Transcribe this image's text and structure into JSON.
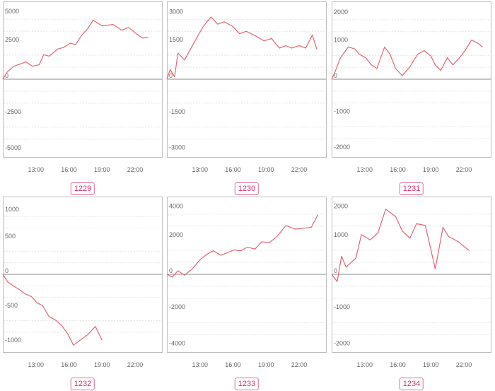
{
  "colors": {
    "line": "#e8646e",
    "frame": "#bdbdbd",
    "grid": "#e4e4e4",
    "zero": "#888888",
    "badge": "#d6336c"
  },
  "chart_data": [
    {
      "type": "line",
      "label": "1229",
      "ylim": [
        -5400,
        5400
      ],
      "yticks": [
        5000,
        2500,
        0,
        -2500,
        -5000
      ],
      "xlim": [
        10,
        24.5
      ],
      "xticks": [
        "13:00",
        "16:00",
        "19:00",
        "22:00"
      ],
      "x": [
        10.0,
        10.4,
        11.0,
        12.1,
        12.7,
        13.3,
        13.7,
        14.2,
        15.0,
        15.5,
        16.1,
        16.6,
        17.2,
        17.7,
        18.2,
        19.0,
        20.0,
        20.8,
        21.4,
        22.2,
        22.7,
        23.2
      ],
      "y": [
        0,
        500,
        900,
        1200,
        900,
        1000,
        1700,
        1600,
        2100,
        2200,
        2500,
        2400,
        3100,
        3500,
        4100,
        3700,
        3800,
        3400,
        3600,
        3100,
        2850,
        2900
      ]
    },
    {
      "type": "line",
      "label": "1230",
      "ylim": [
        -3250,
        3250
      ],
      "yticks": [
        3000,
        1500,
        0,
        -1500,
        -3000
      ],
      "xlim": [
        10,
        24.5
      ],
      "xticks": [
        "13:00",
        "16:00",
        "19:00",
        "22:00"
      ],
      "x": [
        10.0,
        10.3,
        10.7,
        11.0,
        11.6,
        12.8,
        13.3,
        14.0,
        14.6,
        15.2,
        16.0,
        16.6,
        17.2,
        18.1,
        18.8,
        19.5,
        20.2,
        20.8,
        21.3,
        22.0,
        22.6,
        23.2,
        23.6
      ],
      "y": [
        0,
        400,
        100,
        1100,
        800,
        1800,
        2200,
        2600,
        2300,
        2400,
        2200,
        1900,
        2000,
        1800,
        1600,
        1700,
        1300,
        1400,
        1300,
        1400,
        1300,
        1850,
        1250
      ]
    },
    {
      "type": "line",
      "label": "1231",
      "ylim": [
        -2180,
        2180
      ],
      "yticks": [
        2000,
        1000,
        0,
        -1000,
        -2000
      ],
      "xlim": [
        10,
        24.5
      ],
      "xticks": [
        "13:00",
        "16:00",
        "19:00",
        "22:00"
      ],
      "x": [
        10.0,
        10.3,
        10.8,
        11.5,
        12.1,
        12.5,
        13.1,
        13.6,
        14.1,
        14.8,
        15.3,
        15.8,
        16.4,
        17.1,
        17.8,
        18.4,
        19.0,
        19.4,
        19.9,
        20.5,
        21.0,
        21.6,
        22.1,
        22.7,
        23.3,
        23.7
      ],
      "y": [
        0,
        200,
        600,
        900,
        850,
        700,
        600,
        400,
        300,
        900,
        700,
        300,
        100,
        350,
        700,
        800,
        650,
        400,
        250,
        600,
        400,
        600,
        800,
        1100,
        1000,
        900
      ]
    },
    {
      "type": "line",
      "label": "1232",
      "ylim": [
        -1120,
        1120
      ],
      "yticks": [
        1000,
        500,
        0,
        -500,
        -1000
      ],
      "xlim": [
        10,
        24.5
      ],
      "xticks": [
        "13:00",
        "16:00",
        "19:00",
        "22:00"
      ],
      "x": [
        10.0,
        10.5,
        11.0,
        11.5,
        12.0,
        12.6,
        13.1,
        13.6,
        14.2,
        14.8,
        15.4,
        15.9,
        16.4,
        17.0,
        17.7,
        18.4,
        19.0
      ],
      "y": [
        0,
        -120,
        -170,
        -220,
        -280,
        -320,
        -410,
        -450,
        -610,
        -660,
        -750,
        -860,
        -1020,
        -950,
        -870,
        -750,
        -950
      ]
    },
    {
      "type": "line",
      "label": "1233",
      "ylim": [
        -4300,
        4300
      ],
      "yticks": [
        4000,
        2000,
        0,
        -2000,
        -4000
      ],
      "xlim": [
        10,
        24.5
      ],
      "xticks": [
        "13:00",
        "16:00",
        "19:00",
        "22:00"
      ],
      "x": [
        10.0,
        10.5,
        11.0,
        11.6,
        12.3,
        13.0,
        13.6,
        14.2,
        14.9,
        15.5,
        16.1,
        16.7,
        17.3,
        18.0,
        18.6,
        19.3,
        20.0,
        20.8,
        21.6,
        22.4,
        23.1,
        23.7
      ],
      "y": [
        0,
        -150,
        200,
        -50,
        300,
        800,
        1100,
        1300,
        1050,
        1200,
        1350,
        1300,
        1500,
        1400,
        1800,
        1750,
        2100,
        2700,
        2500,
        2550,
        2600,
        3300
      ]
    },
    {
      "type": "line",
      "label": "1234",
      "ylim": [
        -2150,
        2150
      ],
      "yticks": [
        2000,
        1000,
        0,
        -1000,
        -2000
      ],
      "xlim": [
        10,
        24.5
      ],
      "xticks": [
        "13:00",
        "16:00",
        "19:00",
        "22:00"
      ],
      "x": [
        10.0,
        10.5,
        10.9,
        11.3,
        12.2,
        12.7,
        13.5,
        14.2,
        14.9,
        15.8,
        16.4,
        17.1,
        17.7,
        18.5,
        19.4,
        20.1,
        20.6,
        21.5,
        22.5
      ],
      "y": [
        0,
        -200,
        500,
        200,
        450,
        1100,
        950,
        1150,
        1800,
        1600,
        1200,
        1000,
        1400,
        1350,
        150,
        1300,
        1050,
        900,
        650
      ]
    }
  ]
}
